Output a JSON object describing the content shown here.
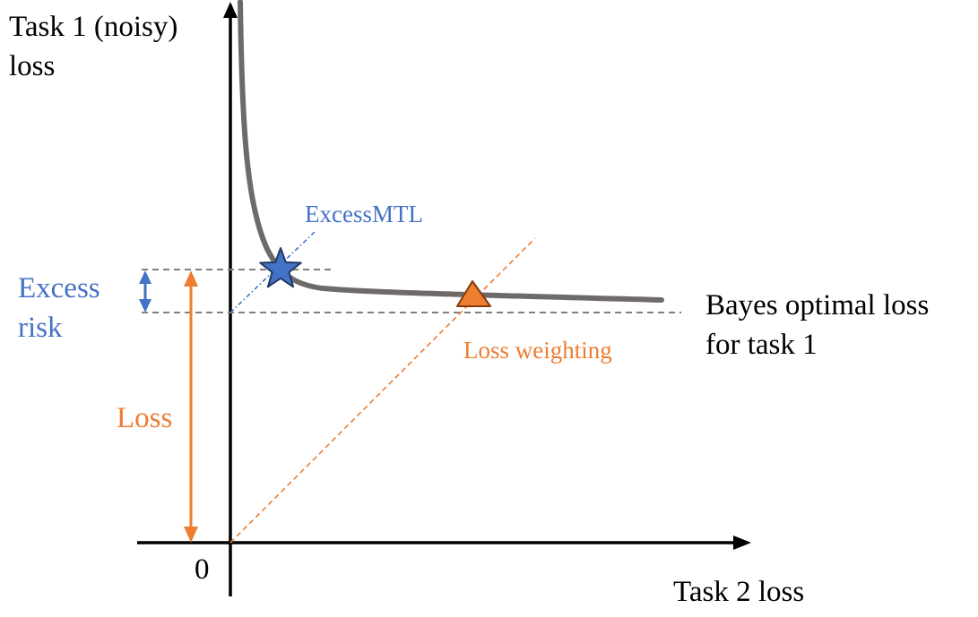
{
  "axes": {
    "y_label_line1": "Task 1 (noisy)",
    "y_label_line2": "loss",
    "x_label": "Task 2 loss",
    "origin_label": "0"
  },
  "annotations": {
    "excess_risk_line1": "Excess",
    "excess_risk_line2": "risk",
    "loss": "Loss",
    "excess_mtl": "ExcessMTL",
    "loss_weighting": "Loss weighting",
    "bayes_line1": "Bayes optimal loss",
    "bayes_line2": "for task 1"
  },
  "colors": {
    "axis": "#000000",
    "curve": "#6f6a6a",
    "blue": "#4472c4",
    "orange": "#ed7d31",
    "dashed_gray": "#7f7f7f"
  },
  "markers": {
    "excess_mtl_point": "star",
    "loss_weighting_point": "triangle"
  }
}
